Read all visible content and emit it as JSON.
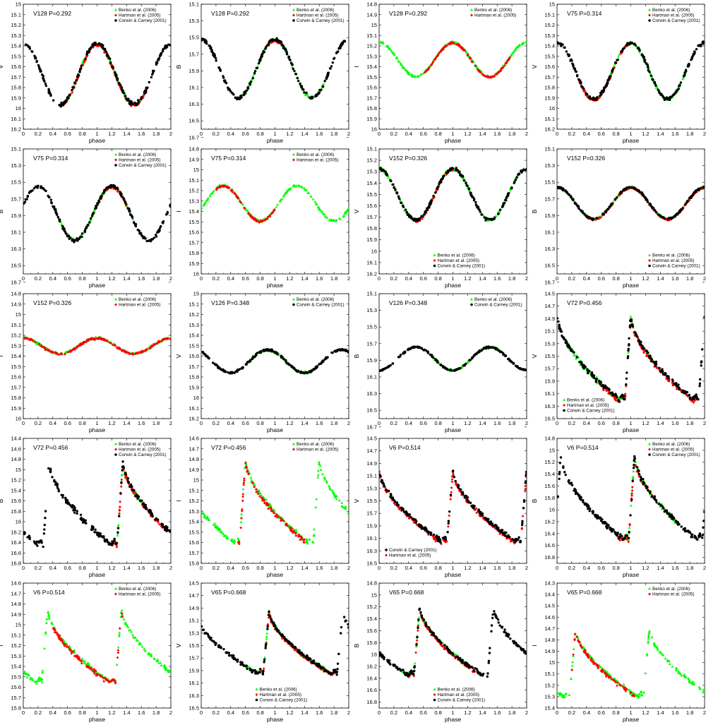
{
  "colors": {
    "benko": "#00ff00",
    "hartman": "#ff0000",
    "corwin": "#000000",
    "frame": "#000000"
  },
  "chart_data": [
    {
      "type": "scatter",
      "title": "V128 P=0.292",
      "xlabel": "phase",
      "ylabel": "V",
      "xlim": [
        0,
        2
      ],
      "ylim": [
        15,
        16.2
      ],
      "y_inverted": true,
      "grid": false,
      "legend": "top-right",
      "shape": "rr",
      "mean": 15.67,
      "amp": 0.58,
      "series": [
        {
          "name": "Benko et al. (2006)",
          "marker": "triangle",
          "color": "#00ff00",
          "phase_range": [
            0.5,
            1.6
          ]
        },
        {
          "name": "Hartman et al. (2005)",
          "marker": "diamond",
          "color": "#ff0000",
          "phase_range": [
            0.5,
            1.7
          ]
        },
        {
          "name": "Corwin & Carney (2001)",
          "marker": "circle",
          "color": "#000000",
          "phase_range": [
            0,
            2
          ]
        }
      ]
    },
    {
      "type": "scatter",
      "title": "V128 P=0.292",
      "xlabel": "phase",
      "ylabel": "B",
      "xlim": [
        0,
        2
      ],
      "ylim": [
        15.1,
        16.6
      ],
      "y_inverted": true,
      "grid": false,
      "legend": "top-right",
      "shape": "rr",
      "mean": 15.87,
      "amp": 0.7,
      "series": [
        {
          "name": "Benko et al. (2006)",
          "marker": "triangle",
          "color": "#00ff00",
          "phase_range": [
            0.5,
            1.7
          ]
        },
        {
          "name": "Hartman et al. (2005)",
          "marker": "diamond",
          "color": "#ff0000",
          "phase_range": [
            0.8,
            1.1
          ]
        },
        {
          "name": "Corwin & Carney (2001)",
          "marker": "circle",
          "color": "#000000",
          "phase_range": [
            0,
            2
          ]
        }
      ]
    },
    {
      "type": "scatter",
      "title": "V128 P=0.292",
      "xlabel": "phase",
      "ylabel": "I",
      "xlim": [
        0,
        2
      ],
      "ylim": [
        14.8,
        16.0
      ],
      "y_inverted": true,
      "grid": false,
      "legend": "top-right",
      "shape": "rr",
      "mean": 15.33,
      "amp": 0.33,
      "series": [
        {
          "name": "Benko et al. (2006)",
          "marker": "triangle",
          "color": "#00ff00",
          "phase_range": [
            0,
            2
          ]
        },
        {
          "name": "Hartman et al. (2005)",
          "marker": "diamond",
          "color": "#ff0000",
          "phase_range": [
            0.6,
            1.8
          ]
        }
      ]
    },
    {
      "type": "scatter",
      "title": "V75 P=0.314",
      "xlabel": "phase",
      "ylabel": "V",
      "xlim": [
        0,
        2
      ],
      "ylim": [
        15,
        16.2
      ],
      "y_inverted": true,
      "grid": false,
      "legend": "top-right",
      "shape": "rr",
      "mean": 15.64,
      "amp": 0.54,
      "series": [
        {
          "name": "Benko et al. (2006)",
          "marker": "triangle",
          "color": "#00ff00",
          "phase_range": [
            0.5,
            1.8
          ]
        },
        {
          "name": "Hartman et al. (2005)",
          "marker": "diamond",
          "color": "#ff0000",
          "phase_range": [
            0.3,
            1.0
          ]
        },
        {
          "name": "Corwin & Carney (2001)",
          "marker": "circle",
          "color": "#000000",
          "phase_range": [
            0,
            2
          ]
        }
      ]
    },
    {
      "type": "scatter",
      "title": "V75 P=0.314",
      "xlabel": "phase",
      "ylabel": "B",
      "xlim": [
        0,
        2
      ],
      "ylim": [
        15.1,
        16.6
      ],
      "y_inverted": true,
      "grid": false,
      "legend": "top-right",
      "shape": "sin",
      "mean": 15.87,
      "amp": 0.65,
      "max_phase": 0.2,
      "series": [
        {
          "name": "Benko et al. (2006)",
          "marker": "triangle",
          "color": "#00ff00",
          "phase_range": [
            0.5,
            1.5
          ]
        },
        {
          "name": "Hartman et al. (2005)",
          "marker": "diamond",
          "color": "#ff0000",
          "phase_range": [
            1.0,
            1.4
          ]
        },
        {
          "name": "Corwin & Carney (2001)",
          "marker": "circle",
          "color": "#000000",
          "phase_range": [
            0,
            2
          ]
        }
      ]
    },
    {
      "type": "scatter",
      "title": "V75 P=0.314",
      "xlabel": "phase",
      "ylabel": "I",
      "xlim": [
        0,
        2
      ],
      "ylim": [
        14.8,
        16.0
      ],
      "y_inverted": true,
      "grid": false,
      "legend": "top-right",
      "shape": "sin",
      "mean": 15.32,
      "amp": 0.34,
      "max_phase": 0.3,
      "series": [
        {
          "name": "Benko et al. (2006)",
          "marker": "triangle",
          "color": "#00ff00",
          "phase_range": [
            0,
            2
          ]
        },
        {
          "name": "Hartman et al. (2005)",
          "marker": "diamond",
          "color": "#ff0000",
          "phase_range": [
            0.2,
            1.0
          ]
        }
      ]
    },
    {
      "type": "scatter",
      "title": "V152 P=0.326",
      "xlabel": "phase",
      "ylabel": "V",
      "xlim": [
        0,
        2
      ],
      "ylim": [
        15.1,
        16.2
      ],
      "y_inverted": true,
      "grid": false,
      "legend": "bottom-center",
      "shape": "sin",
      "mean": 15.5,
      "amp": 0.45,
      "max_phase": 0.0,
      "series": [
        {
          "name": "Benko et al. (2006)",
          "marker": "triangle",
          "color": "#00ff00",
          "phase_range": [
            0,
            2
          ]
        },
        {
          "name": "Hartman et al. (2005)",
          "marker": "diamond",
          "color": "#ff0000",
          "phase_range": [
            0.5,
            1.0
          ]
        },
        {
          "name": "Corwin & Carney (2001)",
          "marker": "circle",
          "color": "#000000",
          "phase_range": [
            0,
            2
          ]
        }
      ]
    },
    {
      "type": "scatter",
      "title": "V152 P=0.326",
      "xlabel": "phase",
      "ylabel": "B",
      "xlim": [
        0,
        2
      ],
      "ylim": [
        15.1,
        16.6
      ],
      "y_inverted": true,
      "grid": false,
      "legend": "bottom-right",
      "shape": "sin",
      "mean": 15.75,
      "amp": 0.38,
      "max_phase": 0.0,
      "series": [
        {
          "name": "Benko et al. (2006)",
          "marker": "triangle",
          "color": "#00ff00",
          "phase_range": [
            0,
            2
          ]
        },
        {
          "name": "Hartman et al. (2005)",
          "marker": "diamond",
          "color": "#ff0000",
          "phase_range": [
            0.4,
            2
          ]
        },
        {
          "name": "Corwin & Carney (2001)",
          "marker": "circle",
          "color": "#000000",
          "phase_range": [
            0,
            2
          ]
        }
      ]
    },
    {
      "type": "scatter",
      "title": "V152 P=0.326",
      "xlabel": "phase",
      "ylabel": "I",
      "xlim": [
        0,
        2
      ],
      "ylim": [
        14.8,
        16.0
      ],
      "y_inverted": true,
      "grid": false,
      "legend": "top-right",
      "shape": "sin",
      "mean": 15.3,
      "amp": 0.15,
      "max_phase": 0.0,
      "series": [
        {
          "name": "Benko et al. (2006)",
          "marker": "triangle",
          "color": "#00ff00",
          "phase_range": [
            0,
            2
          ]
        },
        {
          "name": "Hartman et al. (2005)",
          "marker": "diamond",
          "color": "#ff0000",
          "phase_range": [
            0,
            2
          ]
        }
      ]
    },
    {
      "type": "scatter",
      "title": "V126 P=0.348",
      "xlabel": "phase",
      "ylabel": "V",
      "xlim": [
        0,
        2
      ],
      "ylim": [
        15.0,
        16.2
      ],
      "y_inverted": true,
      "grid": false,
      "legend": "top-right",
      "shape": "sin",
      "mean": 15.65,
      "amp": 0.22,
      "max_phase": 0.9,
      "series": [
        {
          "name": "Benko et al. (2006)",
          "marker": "triangle",
          "color": "#00ff00",
          "phase_range": [
            0.6,
            1.5
          ]
        },
        {
          "name": "Corwin & Carney (2001)",
          "marker": "circle",
          "color": "#000000",
          "phase_range": [
            0,
            2
          ]
        }
      ]
    },
    {
      "type": "scatter",
      "title": "V126 P=0.348",
      "xlabel": "phase",
      "ylabel": "B",
      "xlim": [
        0,
        2
      ],
      "ylim": [
        15.1,
        16.6
      ],
      "y_inverted": true,
      "grid": false,
      "legend": "top-right",
      "shape": "sin",
      "mean": 15.88,
      "amp": 0.28,
      "max_phase": 0.5,
      "series": [
        {
          "name": "Benko et al. (2006)",
          "marker": "triangle",
          "color": "#00ff00",
          "phase_range": [
            0.7,
            1.7
          ]
        },
        {
          "name": "Corwin & Carney (2001)",
          "marker": "circle",
          "color": "#000000",
          "phase_range": [
            0,
            2
          ]
        }
      ]
    },
    {
      "type": "scatter",
      "title": "V72 P=0.456",
      "xlabel": "phase",
      "ylabel": "V",
      "xlim": [
        0,
        2
      ],
      "ylim": [
        14.5,
        16.5
      ],
      "y_inverted": true,
      "grid": false,
      "legend": "bottom-left",
      "shape": "rrab",
      "max_mag": 14.85,
      "min_mag": 16.2,
      "series": [
        {
          "name": "Benko et al. (2006)",
          "marker": "triangle",
          "color": "#00ff00",
          "phase_range": [
            0.1,
            1.3
          ]
        },
        {
          "name": "Hartman et al. (2005)",
          "marker": "diamond",
          "color": "#ff0000",
          "phase_range": [
            0.6,
            1.9
          ]
        },
        {
          "name": "Corwin & Carney (2001)",
          "marker": "circle",
          "color": "#000000",
          "phase_range": [
            0,
            2
          ]
        }
      ]
    },
    {
      "type": "scatter",
      "title": "V72 P=0.456",
      "xlabel": "phase",
      "ylabel": "B",
      "xlim": [
        0,
        2
      ],
      "ylim": [
        14.4,
        16.8
      ],
      "y_inverted": true,
      "grid": false,
      "legend": "top-right",
      "shape": "rrab",
      "max_mag": 14.85,
      "min_mag": 16.45,
      "offset": 0.35,
      "series": [
        {
          "name": "Benko et al. (2006)",
          "marker": "triangle",
          "color": "#00ff00",
          "phase_range": [
            1.2,
            1.6
          ]
        },
        {
          "name": "Hartman et al. (2005)",
          "marker": "diamond",
          "color": "#ff0000",
          "phase_range": [
            1.2,
            1.9
          ]
        },
        {
          "name": "Corwin & Carney (2001)",
          "marker": "circle",
          "color": "#000000",
          "phase_range": [
            0,
            2
          ]
        }
      ]
    },
    {
      "type": "scatter",
      "title": "V72 P=0.456",
      "xlabel": "phase",
      "ylabel": "I",
      "xlim": [
        0,
        2
      ],
      "ylim": [
        14.6,
        15.8
      ],
      "y_inverted": true,
      "grid": false,
      "legend": "top-right",
      "shape": "rrab",
      "max_mag": 14.8,
      "min_mag": 15.6,
      "offset": 0.6,
      "series": [
        {
          "name": "Benko et al. (2006)",
          "marker": "triangle",
          "color": "#00ff00",
          "phase_range": [
            0,
            2
          ]
        },
        {
          "name": "Hartman et al. (2005)",
          "marker": "diamond",
          "color": "#ff0000",
          "phase_range": [
            0.5,
            1.4
          ]
        }
      ]
    },
    {
      "type": "scatter",
      "title": "V6   P=0.514",
      "xlabel": "phase",
      "ylabel": "V",
      "xlim": [
        0,
        2
      ],
      "ylim": [
        14.5,
        16.5
      ],
      "y_inverted": true,
      "grid": false,
      "legend": "bottom-left",
      "shape": "rrab",
      "max_mag": 15.0,
      "min_mag": 16.15,
      "offset": 0.0,
      "series": [
        {
          "name": "Corwin & Carney (2001)",
          "marker": "circle",
          "color": "#000000",
          "phase_range": [
            0,
            2
          ]
        },
        {
          "name": "Hartman et al. (2005)",
          "marker": "diamond",
          "color": "#ff0000",
          "phase_range": [
            0,
            2
          ]
        }
      ]
    },
    {
      "type": "scatter",
      "title": "V6 P=0.514",
      "xlabel": "phase",
      "ylabel": "B",
      "xlim": [
        0,
        2
      ],
      "ylim": [
        14.8,
        16.9
      ],
      "y_inverted": true,
      "grid": false,
      "legend": "top-right",
      "shape": "rrab",
      "max_mag": 15.1,
      "min_mag": 16.5,
      "offset": 0.05,
      "series": [
        {
          "name": "Benko et al. (2006)",
          "marker": "triangle",
          "color": "#00ff00",
          "phase_range": [
            0.9,
            1.7
          ]
        },
        {
          "name": "Hartman et al. (2005)",
          "marker": "diamond",
          "color": "#ff0000",
          "phase_range": [
            0.8,
            1.3
          ]
        },
        {
          "name": "Corwin & Carney (2001)",
          "marker": "circle",
          "color": "#000000",
          "phase_range": [
            0,
            2
          ]
        }
      ]
    },
    {
      "type": "scatter",
      "title": "V6 P=0.514",
      "xlabel": "phase",
      "ylabel": "I",
      "xlim": [
        0,
        2
      ],
      "ylim": [
        14.6,
        15.8
      ],
      "y_inverted": true,
      "grid": false,
      "legend": "top-right",
      "shape": "rrab",
      "max_mag": 14.85,
      "min_mag": 15.55,
      "offset": 0.33,
      "series": [
        {
          "name": "Benko et al. (2006)",
          "marker": "triangle",
          "color": "#00ff00",
          "phase_range": [
            0,
            2
          ]
        },
        {
          "name": "Hartman et al. (2005)",
          "marker": "diamond",
          "color": "#ff0000",
          "phase_range": [
            0.4,
            1.35
          ]
        }
      ]
    },
    {
      "type": "scatter",
      "title": "V65 P=0.668",
      "xlabel": "phase",
      "ylabel": "V",
      "xlim": [
        0,
        2
      ],
      "ylim": [
        14.5,
        16.5
      ],
      "y_inverted": true,
      "grid": false,
      "legend": "bottom-center",
      "shape": "rrab",
      "max_mag": 14.95,
      "min_mag": 15.95,
      "offset": 0.92,
      "series": [
        {
          "name": "Benko et al. (2006)",
          "marker": "triangle",
          "color": "#00ff00",
          "phase_range": [
            0.6,
            1.8
          ]
        },
        {
          "name": "Hartman et al. (2005)",
          "marker": "diamond",
          "color": "#ff0000",
          "phase_range": [
            0.8,
            1.8
          ]
        },
        {
          "name": "Corwin & Carney (2001)",
          "marker": "circle",
          "color": "#000000",
          "phase_range": [
            0,
            2
          ]
        }
      ]
    },
    {
      "type": "scatter",
      "title": "V65 P=0.668",
      "xlabel": "phase",
      "ylabel": "B",
      "xlim": [
        0,
        2
      ],
      "ylim": [
        14.8,
        16.9
      ],
      "y_inverted": true,
      "grid": false,
      "legend": "bottom-center",
      "shape": "rrab",
      "max_mag": 15.2,
      "min_mag": 16.35,
      "offset": 0.55,
      "series": [
        {
          "name": "Benko et al. (2006)",
          "marker": "triangle",
          "color": "#00ff00",
          "phase_range": [
            0.3,
            1.2
          ]
        },
        {
          "name": "Hartman et al. (2005)",
          "marker": "diamond",
          "color": "#ff0000",
          "phase_range": [
            0.4,
            1.3
          ]
        },
        {
          "name": "Corwin & Carney (2001)",
          "marker": "circle",
          "color": "#000000",
          "phase_range": [
            0,
            2
          ]
        }
      ]
    },
    {
      "type": "scatter",
      "title": "V65 P=0.668",
      "xlabel": "phase",
      "ylabel": "I",
      "xlim": [
        0,
        2
      ],
      "ylim": [
        14.3,
        15.4
      ],
      "y_inverted": true,
      "grid": false,
      "legend": "top-right",
      "shape": "rrab",
      "max_mag": 14.7,
      "min_mag": 15.3,
      "offset": 0.25,
      "series": [
        {
          "name": "Benko et al. (2006)",
          "marker": "triangle",
          "color": "#00ff00",
          "phase_range": [
            0,
            2
          ]
        },
        {
          "name": "Hartman et al. (2005)",
          "marker": "diamond",
          "color": "#ff0000",
          "phase_range": [
            0.2,
            1.05
          ]
        }
      ]
    }
  ]
}
